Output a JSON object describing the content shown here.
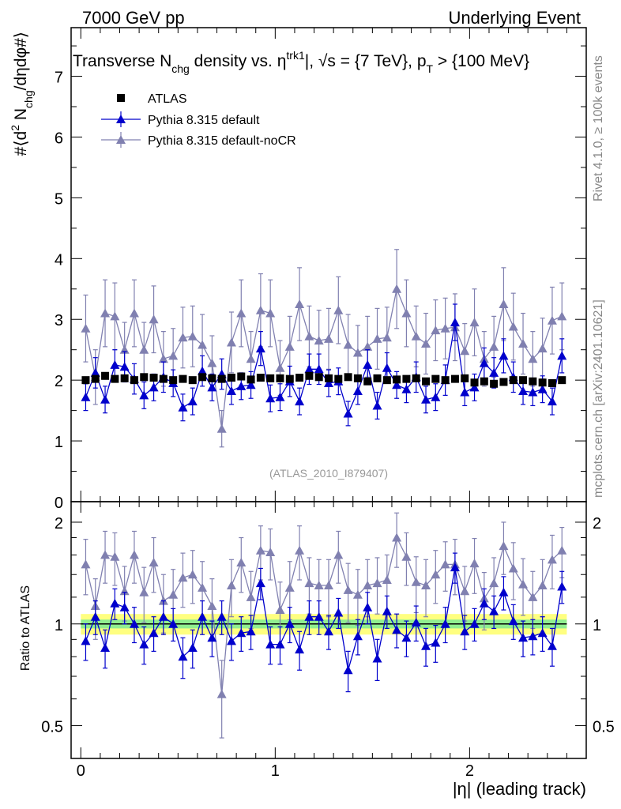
{
  "header": {
    "left": "7000 GeV pp",
    "right": "Underlying Event"
  },
  "side_labels": {
    "rivet": "Rivet 4.1.0, ≥ 100k events",
    "mcplots": "mcplots.cern.ch [arXiv:2401.10621]"
  },
  "colors": {
    "atlas": "#000000",
    "default": "#0000cc",
    "nocr": "#8080b0",
    "band_inner": "#90ee90",
    "band_outer": "#ffff80",
    "ratio_line": "#000000"
  },
  "chart_data": [
    {
      "type": "scatter",
      "title": "Transverse N_chg density vs. η^trk1, √s = {7 TeV}, p_T > {100 MeV}",
      "ylabel": "#⟨d² N_chg/dηdφ#⟩",
      "xlabel": "",
      "analysis_id": "(ATLAS_2010_I879407)",
      "xlim": [
        -0.05,
        2.6
      ],
      "ylim": [
        0,
        7.8
      ],
      "yticks": [
        0,
        1,
        2,
        3,
        4,
        5,
        6,
        7
      ],
      "xticks": [
        0,
        1,
        2
      ],
      "legend_position": "top-left",
      "x": [
        0.025,
        0.075,
        0.125,
        0.175,
        0.225,
        0.275,
        0.325,
        0.375,
        0.425,
        0.475,
        0.525,
        0.575,
        0.625,
        0.675,
        0.725,
        0.775,
        0.825,
        0.875,
        0.925,
        0.975,
        1.025,
        1.075,
        1.125,
        1.175,
        1.225,
        1.275,
        1.325,
        1.375,
        1.425,
        1.475,
        1.525,
        1.575,
        1.625,
        1.675,
        1.725,
        1.775,
        1.825,
        1.875,
        1.925,
        1.975,
        2.025,
        2.075,
        2.125,
        2.175,
        2.225,
        2.275,
        2.325,
        2.375,
        2.425,
        2.475
      ],
      "series": [
        {
          "name": "ATLAS",
          "marker": "square",
          "values": [
            2.0,
            2.02,
            2.07,
            2.02,
            2.03,
            2.0,
            2.05,
            2.04,
            2.02,
            2.0,
            2.02,
            2.0,
            2.05,
            2.03,
            2.02,
            2.04,
            2.06,
            2.01,
            2.04,
            2.03,
            2.03,
            2.02,
            2.04,
            2.07,
            2.05,
            2.03,
            2.02,
            2.05,
            2.03,
            1.98,
            2.03,
            2.0,
            2.01,
            2.02,
            2.03,
            1.98,
            2.02,
            2.0,
            2.02,
            2.03,
            1.96,
            1.98,
            1.94,
            1.97,
            2.0,
            2.0,
            1.98,
            1.96,
            1.95,
            2.0
          ],
          "errors": [
            0.03,
            0.03,
            0.03,
            0.03,
            0.03,
            0.03,
            0.03,
            0.03,
            0.03,
            0.03,
            0.03,
            0.03,
            0.03,
            0.03,
            0.03,
            0.03,
            0.03,
            0.03,
            0.03,
            0.03,
            0.03,
            0.03,
            0.03,
            0.03,
            0.03,
            0.03,
            0.03,
            0.03,
            0.03,
            0.03,
            0.03,
            0.03,
            0.03,
            0.03,
            0.03,
            0.03,
            0.03,
            0.03,
            0.03,
            0.03,
            0.03,
            0.03,
            0.03,
            0.03,
            0.03,
            0.03,
            0.03,
            0.03,
            0.03,
            0.03
          ]
        },
        {
          "name": "Pythia 8.315 default",
          "marker": "triangle",
          "values": [
            1.72,
            2.12,
            1.68,
            2.25,
            2.22,
            2.02,
            1.75,
            1.88,
            2.05,
            1.95,
            1.55,
            1.65,
            2.15,
            1.88,
            2.1,
            1.82,
            1.9,
            1.92,
            2.52,
            1.7,
            1.72,
            1.98,
            1.65,
            2.18,
            2.18,
            1.95,
            1.98,
            1.45,
            1.82,
            2.25,
            1.58,
            2.2,
            1.92,
            1.85,
            2.05,
            1.68,
            1.72,
            2.0,
            2.95,
            1.8,
            1.88,
            2.28,
            2.12,
            2.4,
            2.05,
            1.82,
            1.8,
            1.85,
            1.65,
            2.4
          ],
          "errors": [
            0.22,
            0.25,
            0.22,
            0.25,
            0.25,
            0.25,
            0.22,
            0.22,
            0.25,
            0.22,
            0.22,
            0.22,
            0.25,
            0.22,
            0.25,
            0.22,
            0.22,
            0.22,
            0.28,
            0.22,
            0.22,
            0.25,
            0.22,
            0.25,
            0.25,
            0.22,
            0.22,
            0.2,
            0.22,
            0.25,
            0.22,
            0.25,
            0.22,
            0.22,
            0.25,
            0.22,
            0.22,
            0.25,
            0.3,
            0.22,
            0.22,
            0.25,
            0.25,
            0.28,
            0.25,
            0.22,
            0.22,
            0.22,
            0.22,
            0.28
          ]
        },
        {
          "name": "Pythia 8.315 default-noCR",
          "marker": "triangle",
          "values": [
            2.85,
            2.05,
            3.1,
            3.05,
            2.5,
            3.1,
            2.5,
            3.0,
            2.35,
            2.4,
            2.7,
            2.72,
            2.58,
            2.28,
            1.2,
            2.62,
            3.1,
            2.35,
            3.15,
            3.1,
            2.2,
            2.55,
            3.25,
            2.72,
            2.65,
            2.68,
            3.15,
            2.58,
            2.45,
            2.55,
            2.68,
            2.7,
            3.5,
            3.1,
            2.72,
            2.6,
            2.82,
            2.85,
            2.87,
            2.48,
            2.95,
            2.35,
            2.55,
            3.25,
            2.88,
            2.6,
            2.35,
            2.52,
            2.98,
            3.05
          ],
          "errors": [
            0.55,
            0.45,
            0.55,
            0.55,
            0.45,
            0.55,
            0.45,
            0.55,
            0.45,
            0.45,
            0.5,
            0.5,
            0.5,
            0.45,
            0.3,
            0.5,
            0.55,
            0.45,
            0.6,
            0.55,
            0.45,
            0.5,
            0.6,
            0.5,
            0.5,
            0.5,
            0.55,
            0.5,
            0.45,
            0.5,
            0.5,
            0.5,
            0.65,
            0.55,
            0.5,
            0.5,
            0.5,
            0.5,
            0.55,
            0.45,
            0.55,
            0.45,
            0.5,
            0.6,
            0.55,
            0.5,
            0.45,
            0.5,
            0.55,
            0.55
          ]
        }
      ]
    },
    {
      "type": "scatter",
      "title": "",
      "ylabel": "Ratio to ATLAS",
      "xlabel": "|η| (leading track)",
      "xlim": [
        -0.05,
        2.6
      ],
      "ylim": [
        0.4,
        2.3
      ],
      "yticks": [
        0.5,
        1,
        2
      ],
      "xticks": [
        0,
        1,
        2
      ],
      "band_inner": [
        0.97,
        1.03
      ],
      "band_outer": [
        0.93,
        1.07
      ],
      "x": [
        0.025,
        0.075,
        0.125,
        0.175,
        0.225,
        0.275,
        0.325,
        0.375,
        0.425,
        0.475,
        0.525,
        0.575,
        0.625,
        0.675,
        0.725,
        0.775,
        0.825,
        0.875,
        0.925,
        0.975,
        1.025,
        1.075,
        1.125,
        1.175,
        1.225,
        1.275,
        1.325,
        1.375,
        1.425,
        1.475,
        1.525,
        1.575,
        1.625,
        1.675,
        1.725,
        1.775,
        1.825,
        1.875,
        1.925,
        1.975,
        2.025,
        2.075,
        2.125,
        2.175,
        2.225,
        2.275,
        2.325,
        2.375,
        2.425,
        2.475
      ],
      "series": [
        {
          "name": "Pythia 8.315 default",
          "values": [
            0.89,
            1.05,
            0.85,
            1.15,
            1.12,
            1.0,
            0.87,
            0.94,
            1.05,
            1.0,
            0.8,
            0.85,
            1.05,
            0.91,
            1.05,
            0.89,
            0.94,
            0.95,
            1.32,
            0.87,
            0.87,
            1.0,
            0.84,
            1.05,
            1.05,
            0.95,
            1.08,
            0.73,
            0.92,
            1.12,
            0.79,
            1.09,
            0.96,
            0.91,
            1.01,
            0.86,
            0.88,
            1.0,
            1.47,
            0.95,
            1.0,
            1.15,
            1.09,
            1.24,
            1.02,
            0.91,
            0.92,
            0.94,
            0.86,
            1.29
          ],
          "errors": [
            0.11,
            0.12,
            0.11,
            0.12,
            0.12,
            0.12,
            0.11,
            0.11,
            0.12,
            0.11,
            0.11,
            0.11,
            0.12,
            0.11,
            0.12,
            0.11,
            0.11,
            0.11,
            0.14,
            0.11,
            0.11,
            0.12,
            0.11,
            0.12,
            0.12,
            0.11,
            0.11,
            0.1,
            0.11,
            0.12,
            0.11,
            0.12,
            0.11,
            0.11,
            0.12,
            0.11,
            0.11,
            0.12,
            0.15,
            0.11,
            0.11,
            0.12,
            0.12,
            0.14,
            0.12,
            0.11,
            0.11,
            0.11,
            0.11,
            0.14
          ]
        },
        {
          "name": "Pythia 8.315 default-noCR",
          "values": [
            1.5,
            1.13,
            1.6,
            1.58,
            1.25,
            1.6,
            1.24,
            1.52,
            1.17,
            1.22,
            1.37,
            1.4,
            1.28,
            1.13,
            0.62,
            1.3,
            1.52,
            1.2,
            1.65,
            1.63,
            1.1,
            1.28,
            1.65,
            1.32,
            1.3,
            1.3,
            1.6,
            1.26,
            1.22,
            1.3,
            1.32,
            1.35,
            1.8,
            1.58,
            1.33,
            1.3,
            1.4,
            1.5,
            1.5,
            1.25,
            1.51,
            1.19,
            1.32,
            1.7,
            1.46,
            1.31,
            1.2,
            1.3,
            1.55,
            1.65
          ],
          "errors": [
            0.28,
            0.23,
            0.28,
            0.28,
            0.23,
            0.28,
            0.23,
            0.28,
            0.23,
            0.23,
            0.25,
            0.25,
            0.25,
            0.23,
            0.16,
            0.25,
            0.28,
            0.23,
            0.3,
            0.28,
            0.23,
            0.25,
            0.3,
            0.25,
            0.25,
            0.25,
            0.28,
            0.25,
            0.23,
            0.25,
            0.25,
            0.25,
            0.33,
            0.28,
            0.25,
            0.25,
            0.25,
            0.25,
            0.28,
            0.23,
            0.28,
            0.23,
            0.25,
            0.3,
            0.28,
            0.25,
            0.23,
            0.25,
            0.28,
            0.28
          ]
        }
      ]
    }
  ]
}
